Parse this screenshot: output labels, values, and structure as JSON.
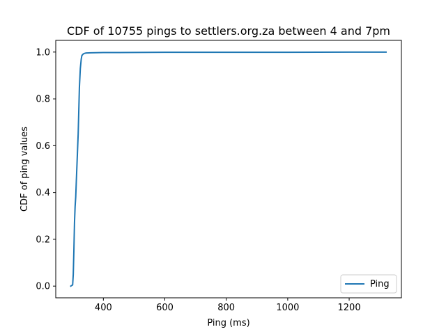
{
  "chart_data": {
    "type": "line",
    "title": "CDF of 10755 pings to settlers.org.za between 4 and 7pm",
    "xlabel": "Ping (ms)",
    "ylabel": "CDF of ping values",
    "xlim": [
      245,
      1370
    ],
    "ylim": [
      -0.05,
      1.05
    ],
    "xticks": [
      400,
      600,
      800,
      1000,
      1200
    ],
    "xtick_labels": [
      "400",
      "600",
      "800",
      "1000",
      "1200"
    ],
    "yticks": [
      0.0,
      0.2,
      0.4,
      0.6,
      0.8,
      1.0
    ],
    "ytick_labels": [
      "0.0",
      "0.2",
      "0.4",
      "0.6",
      "0.8",
      "1.0"
    ],
    "grid": false,
    "legend_position": "lower right",
    "series": [
      {
        "name": "Ping",
        "color": "#1f77b4",
        "x": [
          294,
          296,
          300,
          302,
          304,
          306,
          308,
          310,
          312,
          315,
          318,
          320,
          322,
          325,
          328,
          330,
          333,
          336,
          340,
          345,
          360,
          400,
          450,
          600,
          800,
          1000,
          1200,
          1320
        ],
        "y": [
          0.0,
          0.002,
          0.005,
          0.05,
          0.15,
          0.27,
          0.34,
          0.38,
          0.45,
          0.55,
          0.65,
          0.75,
          0.85,
          0.93,
          0.97,
          0.985,
          0.99,
          0.993,
          0.995,
          0.996,
          0.997,
          0.998,
          0.998,
          0.999,
          0.999,
          0.999,
          1.0,
          1.0
        ]
      }
    ]
  }
}
